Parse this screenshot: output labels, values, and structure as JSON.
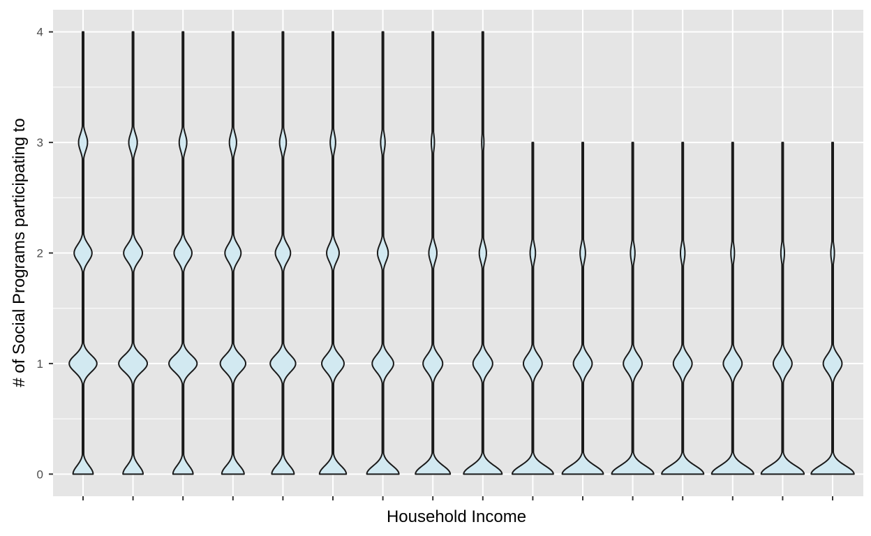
{
  "chart_data": {
    "type": "violin",
    "title": "",
    "xlabel": "Household Income",
    "ylabel": "# of Social Programs participating to",
    "ylim": [
      -0.2,
      4.2
    ],
    "yticks": [
      0,
      1,
      2,
      3,
      4
    ],
    "ytick_labels": [
      "0",
      "1",
      "2",
      "3",
      "4"
    ],
    "x_tick_labels_visible": false,
    "grid": true,
    "colors": {
      "panel": "#e5e5e5",
      "grid": "#ffffff",
      "fill": "#d2e9f1",
      "outline": "#1a1a1a",
      "tick_label": "#4d4d4d"
    },
    "series": [
      {
        "densities": [
          0.45,
          0.62,
          0.4,
          0.2,
          0.04
        ],
        "max": 4
      },
      {
        "densities": [
          0.45,
          0.64,
          0.42,
          0.19,
          0.04
        ],
        "max": 4
      },
      {
        "densities": [
          0.45,
          0.63,
          0.4,
          0.17,
          0.04
        ],
        "max": 4
      },
      {
        "densities": [
          0.5,
          0.57,
          0.36,
          0.16,
          0.04
        ],
        "max": 4
      },
      {
        "densities": [
          0.5,
          0.57,
          0.34,
          0.15,
          0.03
        ],
        "max": 4
      },
      {
        "densities": [
          0.6,
          0.5,
          0.28,
          0.12,
          0.03
        ],
        "max": 4
      },
      {
        "densities": [
          0.72,
          0.48,
          0.24,
          0.1,
          0.03
        ],
        "max": 4
      },
      {
        "densities": [
          0.78,
          0.44,
          0.18,
          0.07,
          0.03
        ],
        "max": 4
      },
      {
        "densities": [
          0.86,
          0.44,
          0.16,
          0.05,
          0.03
        ],
        "max": 4
      },
      {
        "densities": [
          0.92,
          0.42,
          0.12,
          0.03
        ],
        "max": 3
      },
      {
        "densities": [
          0.92,
          0.42,
          0.12,
          0.03
        ],
        "max": 3
      },
      {
        "densities": [
          0.94,
          0.42,
          0.1,
          0.03
        ],
        "max": 3
      },
      {
        "densities": [
          0.94,
          0.42,
          0.1,
          0.03
        ],
        "max": 3
      },
      {
        "densities": [
          0.94,
          0.42,
          0.08,
          0.03
        ],
        "max": 3
      },
      {
        "densities": [
          0.96,
          0.42,
          0.08,
          0.03
        ],
        "max": 3
      },
      {
        "densities": [
          0.96,
          0.42,
          0.08,
          0.03
        ],
        "max": 3
      }
    ]
  }
}
